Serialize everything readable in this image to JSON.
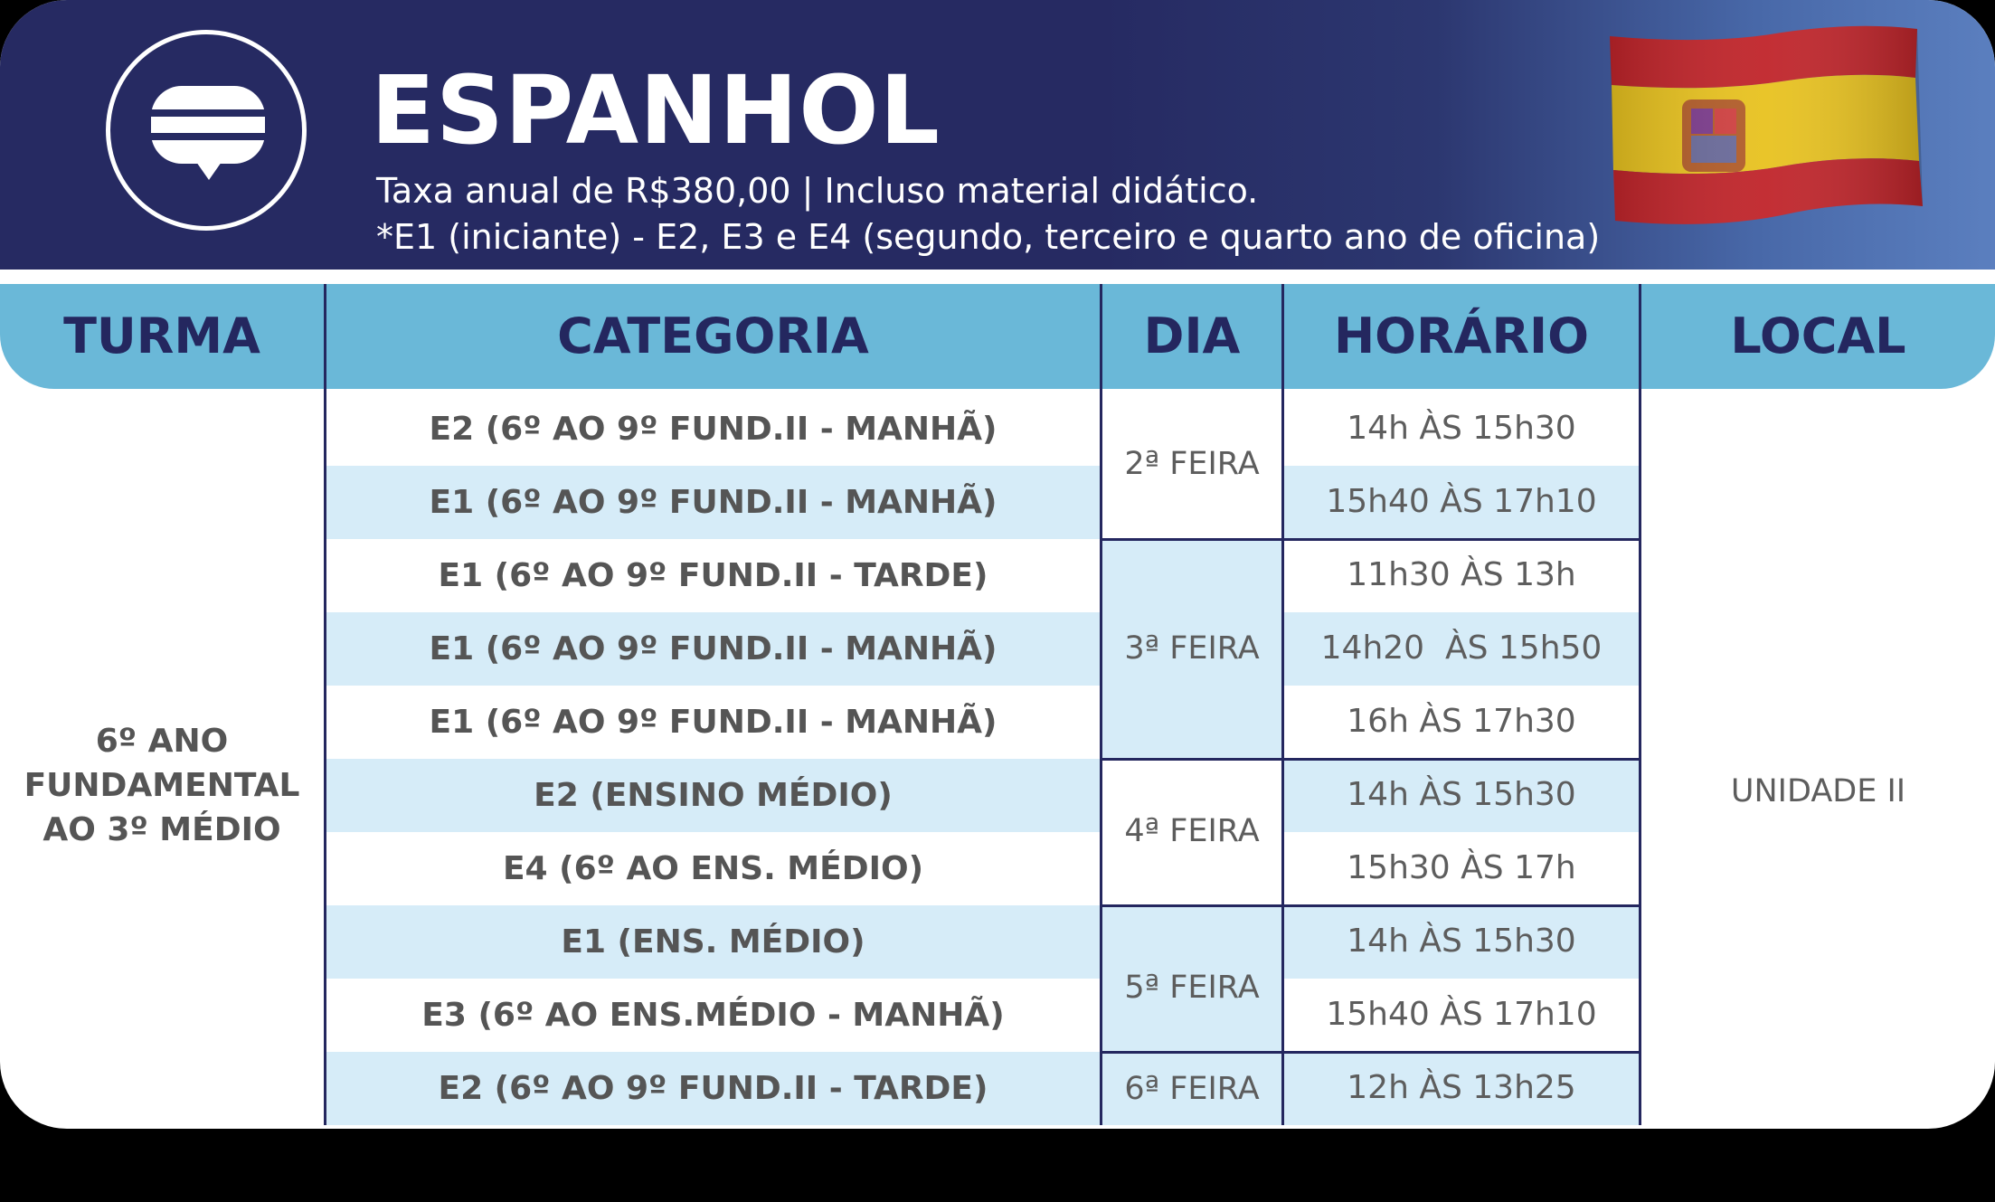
{
  "header": {
    "title": "ESPANHOL",
    "subtitle_line1": "Taxa anual de R$380,00 | Incluso material didático.",
    "subtitle_line2": "*E1 (iniciante) - E2, E3 e E4 (segundo, terceiro e quarto ano de oficina)",
    "icon": "chat-bubble-icon",
    "flag": "spain-flag"
  },
  "columns": [
    "TURMA",
    "CATEGORIA",
    "DIA",
    "HORÁRIO",
    "LOCAL"
  ],
  "turma": [
    "6º ANO",
    "FUNDAMENTAL",
    "AO 3º MÉDIO"
  ],
  "local": "UNIDADE II",
  "days": [
    "2ª FEIRA",
    "3ª FEIRA",
    "4ª FEIRA",
    "5ª FEIRA",
    "6ª FEIRA"
  ],
  "rows": [
    {
      "categoria": "E2 (6º AO 9º FUND.II - MANHÃ)",
      "horario": "14h ÀS 15h30"
    },
    {
      "categoria": "E1 (6º AO 9º FUND.II - MANHÃ)",
      "horario": "15h40 ÀS 17h10"
    },
    {
      "categoria": "E1 (6º AO 9º FUND.II - TARDE)",
      "horario": "11h30 ÀS 13h"
    },
    {
      "categoria": "E1 (6º AO 9º FUND.II - MANHÃ)",
      "horario": "14h20  ÀS 15h50"
    },
    {
      "categoria": "E1 (6º AO 9º FUND.II - MANHÃ)",
      "horario": "16h ÀS 17h30"
    },
    {
      "categoria": "E2 (ENSINO MÉDIO)",
      "horario": "14h ÀS 15h30"
    },
    {
      "categoria": "E4 (6º AO ENS. MÉDIO)",
      "horario": "15h30 ÀS 17h"
    },
    {
      "categoria": "E1 (ENS. MÉDIO)",
      "horario": "14h ÀS 15h30"
    },
    {
      "categoria": "E3 (6º AO ENS.MÉDIO - MANHÃ)",
      "horario": "15h40 ÀS 17h10"
    },
    {
      "categoria": "E2 (6º AO 9º FUND.II - TARDE)",
      "horario": "12h ÀS 13h25"
    }
  ],
  "colors": {
    "header_bg": "#262a62",
    "column_header_bg": "#6ab8d8",
    "row_alt_bg": "#d6ecf8",
    "text_dark": "#24275f"
  }
}
